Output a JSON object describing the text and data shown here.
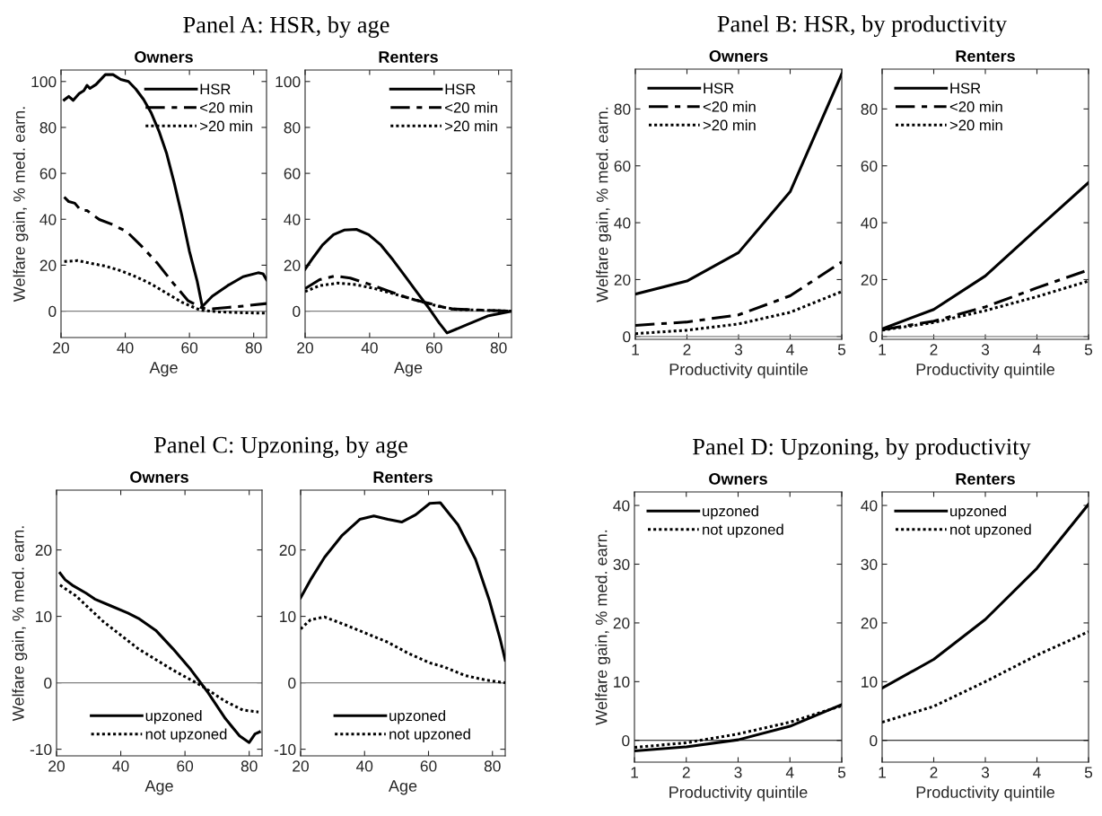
{
  "chart_data": [
    {
      "type": "line",
      "subtitle": "Panel A: HSR, by age",
      "title": "Owners",
      "xlabel": "Age",
      "ylabel": "Welfare gain, % med. earn.",
      "xlim": [
        20,
        84
      ],
      "xticks": [
        20,
        40,
        60,
        80
      ],
      "ylim": [
        -11.5,
        105
      ],
      "yticks": [
        0,
        20,
        40,
        60,
        80,
        100
      ],
      "legend": "top right",
      "ref_lines": [
        {
          "axis": "y",
          "value": 0,
          "color": "#808080"
        }
      ],
      "series": [
        {
          "name": "HSR",
          "color": "#000000",
          "line_style": "solid",
          "x": [
            21,
            22.4,
            23.8,
            25.7,
            27.1,
            28.1,
            29,
            30.9,
            33.8,
            36.2,
            38.6,
            41,
            43.3,
            45.7,
            48.1,
            50.5,
            52.9,
            55.2,
            57.6,
            60,
            62.4,
            64,
            67.1,
            71.9,
            76.7,
            81.4,
            82.9,
            84
          ],
          "values": [
            92,
            93.5,
            91.8,
            94.8,
            96,
            98.3,
            97,
            98.7,
            103,
            103,
            100.9,
            100,
            96.7,
            92.2,
            86.3,
            78.4,
            68.6,
            56.2,
            41.8,
            26,
            13.1,
            2,
            6.5,
            11.1,
            15,
            16.7,
            16.3,
            13.7
          ]
        },
        {
          "name": "<20 min",
          "color": "#000000",
          "line_style": "dashed",
          "x": [
            21,
            22.4,
            24.3,
            26.2,
            28.1,
            31.9,
            35.7,
            40.5,
            45.2,
            50,
            54.8,
            59.5,
            64,
            67.1,
            71.9,
            76.7,
            84
          ],
          "values": [
            49.7,
            47.7,
            47,
            43.8,
            43.8,
            39.9,
            37.9,
            34.6,
            28.1,
            20.9,
            12.4,
            4.6,
            1.3,
            1,
            1.6,
            2.2,
            3.3
          ]
        },
        {
          "name": ">20 min",
          "color": "#000000",
          "line_style": "dotted",
          "x": [
            21,
            25.2,
            29,
            33.8,
            38.6,
            43.3,
            48.1,
            52.9,
            57.6,
            62.4,
            64,
            69,
            76.7,
            84
          ],
          "values": [
            21.6,
            22,
            20.9,
            19.6,
            17.6,
            15,
            11.8,
            7.8,
            3.9,
            1,
            0.3,
            -0.3,
            -0.7,
            -0.9
          ]
        }
      ]
    },
    {
      "type": "line",
      "title": "Renters",
      "xlabel": "Age",
      "xlim": [
        20,
        84
      ],
      "xticks": [
        20,
        40,
        60,
        80
      ],
      "ylim": [
        -11.5,
        105
      ],
      "yticks": [
        0,
        20,
        40,
        60,
        80,
        100
      ],
      "legend": "top right",
      "ref_lines": [
        {
          "axis": "y",
          "value": 0,
          "color": "#808080"
        }
      ],
      "series": [
        {
          "name": "HSR",
          "color": "#000000",
          "line_style": "solid",
          "x": [
            20,
            22.6,
            25.4,
            28.8,
            32.1,
            35.9,
            39.7,
            43.5,
            47.3,
            51.1,
            54.9,
            58.7,
            61.6,
            64,
            70.2,
            76.9,
            84
          ],
          "values": [
            18.3,
            23.5,
            28.8,
            33.3,
            35.3,
            35.6,
            33.3,
            28.8,
            22.2,
            15,
            7.8,
            0.7,
            -5.2,
            -9.5,
            -5.9,
            -2,
            0
          ]
        },
        {
          "name": "<20 min",
          "color": "#000000",
          "line_style": "dashed",
          "x": [
            20,
            24.5,
            29.2,
            34,
            39.7,
            46.4,
            53,
            59.7,
            64.5,
            70.2,
            84
          ],
          "values": [
            9.8,
            13.7,
            15.3,
            14.4,
            11.8,
            8.5,
            5.2,
            3,
            1,
            0.7,
            0
          ]
        },
        {
          "name": ">20 min",
          "color": "#000000",
          "line_style": "dotted",
          "x": [
            20,
            24.5,
            30.2,
            35.9,
            41.6,
            48.3,
            54.9,
            61.6,
            67.3,
            84
          ],
          "values": [
            8.5,
            11.1,
            12.2,
            11.5,
            9.8,
            7.2,
            4.6,
            2,
            0.7,
            0
          ]
        }
      ]
    },
    {
      "type": "line",
      "subtitle": "Panel B: HSR, by productivity",
      "title": "Owners",
      "xlabel": "Productivity quintile",
      "ylabel": "Welfare gain, % med. earn.",
      "x": [
        1,
        2,
        3,
        4,
        5
      ],
      "xlim": [
        1,
        5
      ],
      "xticks": [
        1,
        2,
        3,
        4,
        5
      ],
      "ylim": [
        -1,
        94
      ],
      "yticks": [
        0,
        20,
        40,
        60,
        80
      ],
      "legend": "top left",
      "ref_lines": [
        {
          "axis": "y",
          "value": 0,
          "color": "#808080"
        }
      ],
      "series": [
        {
          "name": "HSR",
          "color": "#000000",
          "line_style": "solid",
          "values": [
            14.9,
            19.5,
            29.5,
            50.9,
            92.3
          ]
        },
        {
          "name": "<20 min",
          "color": "#000000",
          "line_style": "dashed",
          "values": [
            3.9,
            5.1,
            7.6,
            14.3,
            26.2
          ]
        },
        {
          "name": ">20 min",
          "color": "#000000",
          "line_style": "dotted",
          "values": [
            1.0,
            2.2,
            4.4,
            8.5,
            15.8
          ]
        }
      ]
    },
    {
      "type": "line",
      "title": "Renters",
      "xlabel": "Productivity quintile",
      "x": [
        1,
        2,
        3,
        4,
        5
      ],
      "xlim": [
        1,
        5
      ],
      "xticks": [
        1,
        2,
        3,
        4,
        5
      ],
      "ylim": [
        -1,
        94
      ],
      "yticks": [
        0,
        20,
        40,
        60,
        80
      ],
      "legend": "top left",
      "ref_lines": [
        {
          "axis": "y",
          "value": 0,
          "color": "#808080"
        }
      ],
      "series": [
        {
          "name": "HSR",
          "color": "#000000",
          "line_style": "solid",
          "values": [
            2.7,
            9.5,
            21.3,
            37.8,
            54.1
          ]
        },
        {
          "name": "<20 min",
          "color": "#000000",
          "line_style": "dashed",
          "values": [
            2.4,
            5.4,
            10.4,
            17.1,
            23.4
          ]
        },
        {
          "name": ">20 min",
          "color": "#000000",
          "line_style": "dotted",
          "values": [
            2.2,
            4.9,
            9.1,
            14,
            19.5
          ]
        }
      ]
    },
    {
      "type": "line",
      "subtitle": "Panel C: Upzoning, by age",
      "title": "Owners",
      "xlabel": "Age",
      "ylabel": "Welfare gain, % med. earn.",
      "xlim": [
        20,
        84
      ],
      "xticks": [
        20,
        40,
        60,
        80
      ],
      "ylim": [
        -11,
        29
      ],
      "yticks": [
        -10,
        0,
        10,
        20
      ],
      "legend": "bottom",
      "ref_lines": [
        {
          "axis": "y",
          "value": 0,
          "color": "#808080"
        }
      ],
      "series": [
        {
          "name": "upzoned",
          "color": "#000000",
          "line_style": "solid",
          "x": [
            21.1,
            22.7,
            24.9,
            29.2,
            31.9,
            36.8,
            42.2,
            45.5,
            50.9,
            56.3,
            61.8,
            67.2,
            72.6,
            77,
            80,
            81.8,
            83.2
          ],
          "values": [
            16.5,
            15.5,
            14.7,
            13.5,
            12.6,
            11.6,
            10.5,
            9.7,
            7.9,
            5.1,
            2,
            -1.5,
            -5.4,
            -8,
            -9,
            -7.7,
            -7.4
          ]
        },
        {
          "name": "not upzoned",
          "color": "#000000",
          "line_style": "dotted",
          "x": [
            21.1,
            26,
            34.6,
            45.5,
            56.3,
            65,
            72.6,
            78,
            82.9
          ],
          "values": [
            14.7,
            13.1,
            9.2,
            5.1,
            1.9,
            -0.4,
            -2.8,
            -4.1,
            -4.4
          ]
        }
      ]
    },
    {
      "type": "line",
      "title": "Renters",
      "xlabel": "Age",
      "xlim": [
        20,
        84
      ],
      "xticks": [
        20,
        40,
        60,
        80
      ],
      "ylim": [
        -11,
        29
      ],
      "yticks": [
        -10,
        0,
        10,
        20
      ],
      "legend": "bottom",
      "ref_lines": [
        {
          "axis": "y",
          "value": 0,
          "color": "#808080"
        }
      ],
      "series": [
        {
          "name": "upzoned",
          "color": "#000000",
          "line_style": "solid",
          "x": [
            20,
            23.1,
            27.5,
            33,
            38.5,
            42.9,
            47.3,
            51.6,
            56,
            60.4,
            63.7,
            69.2,
            74.7,
            79.1,
            82.4,
            84
          ],
          "values": [
            12.8,
            15.5,
            18.9,
            22.2,
            24.6,
            25.1,
            24.6,
            24.2,
            25.3,
            27,
            27.1,
            23.8,
            18.6,
            12.3,
            6.6,
            3.4
          ]
        },
        {
          "name": "not upzoned",
          "color": "#000000",
          "line_style": "dotted",
          "x": [
            20,
            23.1,
            27.5,
            34.1,
            40.7,
            47.3,
            53.8,
            60.4,
            64.8,
            71.4,
            78,
            84
          ],
          "values": [
            8.1,
            9.5,
            9.9,
            8.7,
            7.4,
            6.1,
            4.4,
            3,
            2.4,
            1.1,
            0.4,
            0
          ]
        }
      ]
    },
    {
      "type": "line",
      "subtitle": "Panel D: Upzoning, by productivity",
      "title": "Owners",
      "xlabel": "Productivity quintile",
      "ylabel": "Welfare gain, % med. earn.",
      "x": [
        1,
        2,
        3,
        4,
        5
      ],
      "xlim": [
        1,
        5
      ],
      "xticks": [
        1,
        2,
        3,
        4,
        5
      ],
      "ylim": [
        -3.7,
        42.3
      ],
      "yticks": [
        0,
        10,
        20,
        30,
        40
      ],
      "legend": "top left",
      "ref_lines": [
        {
          "axis": "y",
          "value": 0,
          "color": "#000000"
        }
      ],
      "series": [
        {
          "name": "upzoned",
          "color": "#000000",
          "line_style": "solid",
          "values": [
            -1.8,
            -1.1,
            0.1,
            2.4,
            6.1
          ]
        },
        {
          "name": "not upzoned",
          "color": "#000000",
          "line_style": "dotted",
          "values": [
            -1.2,
            -0.4,
            1.1,
            3.1,
            5.9
          ]
        }
      ]
    },
    {
      "type": "line",
      "title": "Renters",
      "xlabel": "Productivity quintile",
      "x": [
        1,
        2,
        3,
        4,
        5
      ],
      "xlim": [
        1,
        5
      ],
      "xticks": [
        1,
        2,
        3,
        4,
        5
      ],
      "ylim": [
        -3.7,
        42.3
      ],
      "yticks": [
        0,
        10,
        20,
        30,
        40
      ],
      "legend": "top left",
      "ref_lines": [
        {
          "axis": "y",
          "value": 0,
          "color": "#000000"
        }
      ],
      "series": [
        {
          "name": "upzoned",
          "color": "#000000",
          "line_style": "solid",
          "values": [
            8.9,
            13.8,
            20.6,
            29.3,
            40.2
          ]
        },
        {
          "name": "not upzoned",
          "color": "#000000",
          "line_style": "dotted",
          "values": [
            3.1,
            5.8,
            10,
            14.5,
            18.5
          ]
        }
      ]
    }
  ]
}
